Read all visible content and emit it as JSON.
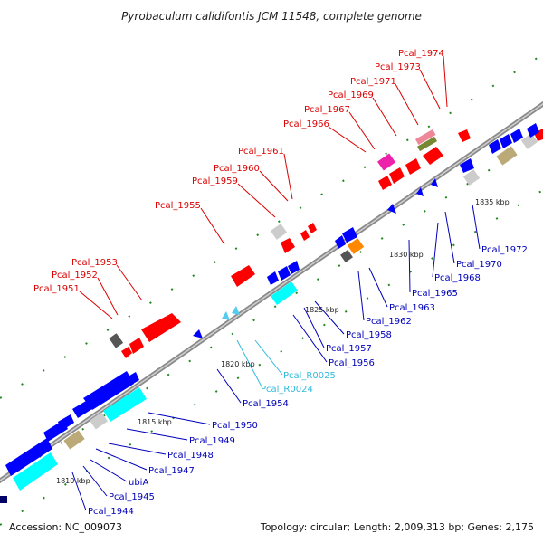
{
  "title": "Pyrobaculum calidifontis JCM 11548, complete genome",
  "accession": "Accession: NC_009073",
  "summary": "Topology: circular; Length: 2,009,313 bp; Genes: 2,175",
  "colors": {
    "label_forward": "#dd0000",
    "label_reverse": "#0000bb",
    "label_rna": "#33bbdd",
    "backbone": "#8a8a8a",
    "tick": "#228822"
  },
  "scale_labels": [
    "1810 kbp",
    "1815 kbp",
    "1820 kbp",
    "1825 kbp",
    "1830 kbp",
    "1835 kbp"
  ],
  "forward_labels": [
    "Pcal_1951",
    "Pcal_1952",
    "Pcal_1953",
    "Pcal_1955",
    "Pcal_1959",
    "Pcal_1960",
    "Pcal_1961",
    "Pcal_1966",
    "Pcal_1967",
    "Pcal_1969",
    "Pcal_1971",
    "Pcal_1973",
    "Pcal_1974"
  ],
  "reverse_labels": [
    "Pcal_1944",
    "Pcal_1945",
    "ubiA",
    "Pcal_1947",
    "Pcal_1948",
    "Pcal_1949",
    "Pcal_1950",
    "Pcal_1954",
    "Pcal_1956",
    "Pcal_1957",
    "Pcal_1958",
    "Pcal_1962",
    "Pcal_1963",
    "Pcal_1965",
    "Pcal_1968",
    "Pcal_1970",
    "Pcal_1972"
  ],
  "rna_labels": [
    "Pcal_R0024",
    "Pcal_R0025"
  ]
}
